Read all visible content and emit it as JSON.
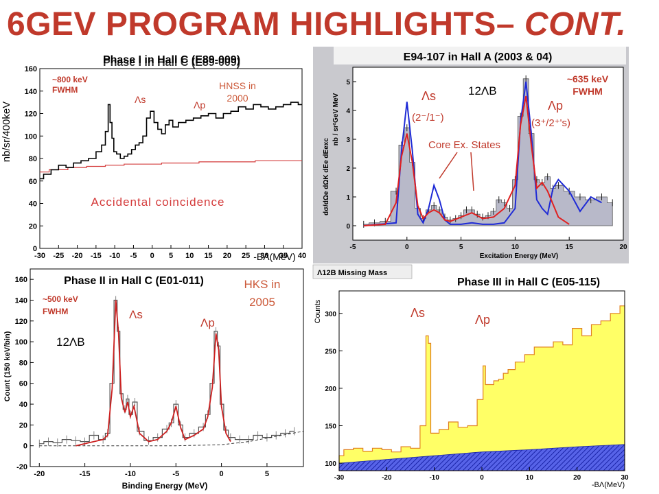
{
  "slide": {
    "title": "6GEV PROGRAM HIGHLIGHTS– ",
    "title_italic": "CONT.",
    "title_color": "#c0392b"
  },
  "chart_data": [
    {
      "id": "hnss",
      "type": "line",
      "title": "Phase I in Hall C (E89-009)",
      "overlay_text": "Phase I in Hall C (E89-009)",
      "ylabel": "nb/sr/400keV",
      "xlabel": "-BΛ(MeV)",
      "xlim": [
        -30,
        40
      ],
      "ylim": [
        0,
        160
      ],
      "xticks": [
        -30,
        -25,
        -20,
        -15,
        -10,
        -5,
        0,
        5,
        10,
        15,
        20,
        25,
        30,
        35,
        40
      ],
      "xtick_labels": [
        "-30",
        "-25",
        "-20",
        "-15",
        "-10",
        "-5",
        "0",
        "5",
        "10",
        "15",
        "20",
        "25",
        "30",
        "35",
        "40"
      ],
      "yticks": [
        0,
        20,
        40,
        60,
        80,
        100,
        120,
        140,
        160
      ],
      "annotations": {
        "fwhm": "~800 keV\nFWHM",
        "lambda_s": "Λs",
        "lambda_p": "Λp",
        "experiment": "HNSS in\n2000",
        "accidental": "Accidental coincidence"
      },
      "colors": {
        "data": "#000000",
        "accidental": "#d43a3a",
        "annotation": "#c0392b"
      },
      "series": [
        {
          "name": "data",
          "x": [
            -30,
            -28,
            -26,
            -24,
            -22,
            -20,
            -18,
            -16,
            -14,
            -13,
            -12,
            -11.5,
            -11,
            -10.5,
            -10,
            -9,
            -8,
            -7,
            -6,
            -5,
            -4,
            -3,
            -2,
            -1,
            0,
            1,
            2,
            3,
            4,
            5,
            6,
            8,
            10,
            12,
            14,
            16,
            18,
            20,
            22,
            24,
            26,
            28,
            30,
            32,
            34,
            36,
            38,
            40
          ],
          "y": [
            62,
            66,
            70,
            74,
            72,
            76,
            78,
            80,
            86,
            92,
            104,
            128,
            112,
            98,
            86,
            84,
            80,
            82,
            84,
            88,
            92,
            94,
            100,
            116,
            122,
            112,
            106,
            102,
            110,
            114,
            108,
            112,
            114,
            116,
            118,
            120,
            116,
            120,
            122,
            126,
            124,
            128,
            126,
            124,
            126,
            128,
            130,
            128
          ]
        },
        {
          "name": "accidental",
          "x": [
            -30,
            -25,
            -20,
            -15,
            -10,
            -5,
            0,
            5,
            10,
            15,
            20,
            25,
            30,
            35,
            40
          ],
          "y": [
            68,
            70,
            72,
            73,
            74,
            75,
            75,
            76,
            76,
            77,
            77,
            77,
            78,
            78,
            78
          ]
        }
      ]
    },
    {
      "id": "e94107",
      "type": "line",
      "title": "E94-107 in Hall A (2003 & 04)",
      "ylabel": "dσ/dΩe dΩK dEe dEexc",
      "ylabel_unit": "nb / sr²GeV MeV",
      "xlabel": "Excitation Energy (MeV)",
      "xlim": [
        -5,
        20
      ],
      "ylim": [
        -0.5,
        5.5
      ],
      "xticks": [
        -5,
        0,
        5,
        10,
        15,
        20
      ],
      "yticks": [
        0,
        1,
        2,
        3,
        4,
        5
      ],
      "annotations": {
        "fwhm": "~635 keV\nFWHM",
        "nucleus": "12ΛB",
        "lambda_s": "Λs",
        "lambda_s_state": "(2⁻/1⁻)",
        "lambda_p": "Λp",
        "lambda_p_state": "(3⁺/2⁺'s)",
        "core": "Core Ex. States"
      },
      "colors": {
        "fill": "#b8b9c9",
        "red": "#e02020",
        "blue": "#1f2bd6",
        "annotation": "#c0392b"
      },
      "series": [
        {
          "name": "data",
          "x": [
            -4,
            -3,
            -2,
            -1,
            -0.5,
            0,
            0.5,
            1,
            1.5,
            2,
            2.5,
            3,
            3.5,
            4,
            4.5,
            5,
            5.5,
            6,
            6.5,
            7,
            7.5,
            8,
            8.5,
            9,
            9.5,
            10,
            10.5,
            11,
            11.5,
            12,
            12.5,
            13,
            13.5,
            14,
            15,
            16,
            17,
            18,
            19
          ],
          "y": [
            0.05,
            0.1,
            0.15,
            1.2,
            2.8,
            3.4,
            2.2,
            0.6,
            0.25,
            0.55,
            0.7,
            0.55,
            0.3,
            0.2,
            0.25,
            0.35,
            0.55,
            0.55,
            0.4,
            0.3,
            0.35,
            0.5,
            0.9,
            0.8,
            0.6,
            1.6,
            3.8,
            5.1,
            3.2,
            1.6,
            1.5,
            1.7,
            1.3,
            1.4,
            1.2,
            1.0,
            0.9,
            1.0,
            0.8
          ]
        },
        {
          "name": "fit",
          "x": [
            -4,
            -2,
            -1,
            -0.5,
            0,
            0.5,
            1,
            1.5,
            2,
            2.5,
            3,
            3.5,
            4,
            5,
            6,
            7,
            8,
            9,
            10,
            10.5,
            11,
            11.5,
            12,
            12.5,
            13,
            14,
            15
          ],
          "y": [
            0,
            0.05,
            0.8,
            2.4,
            3.2,
            2.2,
            0.7,
            0.25,
            0.45,
            0.55,
            0.45,
            0.2,
            0.15,
            0.3,
            0.45,
            0.25,
            0.3,
            0.6,
            1.4,
            3.5,
            4.5,
            2.8,
            1.3,
            1.5,
            1.2,
            0.3,
            0.05
          ]
        },
        {
          "name": "theory",
          "x": [
            -4,
            -1,
            -0.5,
            0,
            0.5,
            1,
            1.5,
            2,
            2.5,
            3,
            3.5,
            4,
            5,
            6,
            7,
            8,
            9,
            10,
            10.5,
            11,
            11.5,
            12,
            12.5,
            13,
            13.5,
            14,
            15,
            16,
            17,
            18
          ],
          "y": [
            0,
            0.1,
            2.6,
            4.3,
            2.6,
            0.4,
            0.1,
            0.6,
            1.4,
            0.9,
            0.2,
            0.05,
            0.05,
            0.1,
            0.05,
            0.05,
            0.1,
            0.6,
            3.6,
            5.0,
            3.2,
            0.9,
            0.6,
            0.4,
            1.3,
            1.6,
            1.2,
            0.5,
            1.0,
            0.8
          ]
        }
      ]
    },
    {
      "id": "hks",
      "type": "line",
      "title": "Phase II in Hall C (E01-011)",
      "ylabel": "Count (150 keV/bin)",
      "xlabel": "Binding Energy (MeV)",
      "xlim": [
        -21,
        9
      ],
      "ylim": [
        -20,
        170
      ],
      "xticks": [
        -20,
        -15,
        -10,
        -5,
        0,
        5
      ],
      "yticks": [
        -20,
        0,
        20,
        40,
        60,
        80,
        100,
        120,
        140,
        160
      ],
      "annotations": {
        "fwhm": "~500 keV\nFWHM",
        "nucleus": "12ΛB",
        "lambda_s": "Λs",
        "lambda_p": "Λp",
        "experiment": "HKS in\n2005"
      },
      "colors": {
        "data": "#555555",
        "fit": "#cc2020",
        "annotation": "#c0392b"
      },
      "series": [
        {
          "name": "data",
          "x": [
            -20,
            -19,
            -18,
            -17,
            -16,
            -15,
            -14,
            -13,
            -12.5,
            -12,
            -11.6,
            -11.3,
            -11,
            -10.6,
            -10.3,
            -10,
            -9.5,
            -9,
            -8,
            -7,
            -6,
            -5.5,
            -5,
            -4.5,
            -4,
            -3,
            -2,
            -1.5,
            -1,
            -0.6,
            -0.3,
            0,
            0.5,
            1,
            2,
            3,
            4,
            5,
            6,
            7,
            8
          ],
          "y": [
            2,
            4,
            3,
            6,
            5,
            4,
            10,
            6,
            12,
            60,
            140,
            110,
            50,
            35,
            45,
            30,
            42,
            14,
            5,
            8,
            16,
            22,
            40,
            20,
            8,
            12,
            18,
            30,
            60,
            110,
            96,
            40,
            15,
            8,
            6,
            6,
            10,
            8,
            10,
            12,
            14
          ]
        },
        {
          "name": "fit",
          "x": [
            -16,
            -14,
            -13,
            -12.5,
            -12,
            -11.6,
            -11.3,
            -11,
            -10.6,
            -10.3,
            -10,
            -9.6,
            -9,
            -8,
            -7,
            -6,
            -5.5,
            -5,
            -4.5,
            -4,
            -3,
            -2,
            -1.5,
            -1,
            -0.6,
            -0.3,
            0,
            0.5,
            1
          ],
          "y": [
            0,
            4,
            6,
            10,
            55,
            140,
            108,
            46,
            32,
            42,
            28,
            38,
            12,
            4,
            6,
            14,
            22,
            38,
            18,
            6,
            10,
            16,
            28,
            56,
            108,
            92,
            38,
            12,
            4
          ]
        },
        {
          "name": "background",
          "x": [
            -20,
            -10,
            -5,
            0,
            3,
            6,
            9
          ],
          "y": [
            0,
            0,
            0,
            1,
            4,
            9,
            14
          ]
        }
      ]
    },
    {
      "id": "hes",
      "type": "bar",
      "title": "Phase III in Hall C (E05-115)",
      "panel_label": "Λ12B Missing Mass",
      "ylabel": "Counts",
      "xlabel": "-BΛ(MeV)",
      "xlim": [
        -30,
        30
      ],
      "ylim": [
        90,
        330
      ],
      "xticks": [
        -30,
        -20,
        -10,
        0,
        10,
        20,
        30
      ],
      "yticks": [
        100,
        150,
        200,
        250,
        300
      ],
      "annotations": {
        "lambda_s": "Λs",
        "lambda_p": "Λp"
      },
      "colors": {
        "signal": "#ffff66",
        "signal_edge": "#e08020",
        "background": "#2c3bd6",
        "annotation": "#c0392b"
      },
      "series": [
        {
          "name": "total",
          "x": [
            -30,
            -28,
            -26,
            -24,
            -22,
            -20,
            -18,
            -16,
            -14,
            -12,
            -11.5,
            -11,
            -10.5,
            -10,
            -8,
            -6,
            -4,
            -2,
            0,
            0.5,
            1,
            2,
            3,
            4,
            5,
            6,
            8,
            10,
            12,
            14,
            16,
            18,
            20,
            22,
            24,
            26,
            28,
            30
          ],
          "y": [
            110,
            118,
            120,
            116,
            120,
            118,
            115,
            122,
            120,
            150,
            270,
            260,
            140,
            140,
            145,
            155,
            148,
            150,
            185,
            230,
            205,
            205,
            210,
            212,
            220,
            225,
            235,
            245,
            255,
            255,
            262,
            258,
            280,
            270,
            285,
            290,
            300,
            310
          ]
        },
        {
          "name": "background",
          "x": [
            -30,
            -20,
            -10,
            0,
            10,
            20,
            30
          ],
          "y": [
            100,
            105,
            110,
            115,
            118,
            122,
            125
          ]
        }
      ]
    }
  ]
}
